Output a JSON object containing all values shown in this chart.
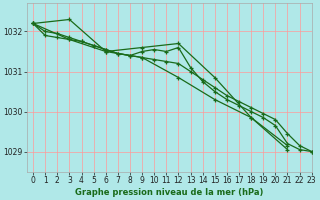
{
  "title": "Graphe pression niveau de la mer (hPa)",
  "background_color": "#b0e8e8",
  "grid_color": "#ff9999",
  "line_color": "#1a6b1a",
  "marker_color": "#1a6b1a",
  "xlim": [
    -0.5,
    23
  ],
  "ylim": [
    1028.5,
    1032.7
  ],
  "yticks": [
    1029,
    1030,
    1031,
    1032
  ],
  "xticks": [
    0,
    1,
    2,
    3,
    4,
    5,
    6,
    7,
    8,
    9,
    10,
    11,
    12,
    13,
    14,
    15,
    16,
    17,
    18,
    19,
    20,
    21,
    22,
    23
  ],
  "series": [
    {
      "x": [
        0,
        1,
        2,
        3,
        4,
        5,
        6,
        7,
        8,
        9,
        10,
        11,
        12,
        13,
        14,
        15,
        16,
        17,
        18,
        19,
        20,
        21,
        22,
        23
      ],
      "y": [
        1032.2,
        1031.9,
        1031.85,
        1031.8,
        1031.75,
        1031.65,
        1031.55,
        1031.45,
        1031.4,
        1031.35,
        1031.3,
        1031.25,
        1031.2,
        1031.0,
        1030.8,
        1030.6,
        1030.4,
        1030.25,
        1030.1,
        1029.95,
        1029.8,
        1029.45,
        1029.15,
        1029.0
      ]
    },
    {
      "x": [
        0,
        1,
        2,
        3,
        4,
        5,
        6,
        7,
        8,
        9,
        10,
        11,
        12,
        13,
        14,
        15,
        16,
        17,
        18,
        19,
        20,
        21,
        22,
        23
      ],
      "y": [
        1032.2,
        1032.0,
        1031.95,
        1031.85,
        1031.75,
        1031.65,
        1031.55,
        1031.45,
        1031.4,
        1031.5,
        1031.55,
        1031.5,
        1031.6,
        1031.1,
        1030.75,
        1030.5,
        1030.3,
        1030.15,
        1030.0,
        1029.85,
        1029.65,
        1029.2,
        1029.05,
        1029.0
      ]
    },
    {
      "x": [
        0,
        3,
        6,
        9,
        12,
        15,
        18,
        21
      ],
      "y": [
        1032.2,
        1032.3,
        1031.5,
        1031.6,
        1031.7,
        1030.85,
        1029.85,
        1029.05
      ]
    },
    {
      "x": [
        0,
        3,
        6,
        9,
        12,
        15,
        18,
        21
      ],
      "y": [
        1032.2,
        1031.8,
        1031.5,
        1031.35,
        1030.85,
        1030.3,
        1029.85,
        1029.15
      ]
    }
  ]
}
